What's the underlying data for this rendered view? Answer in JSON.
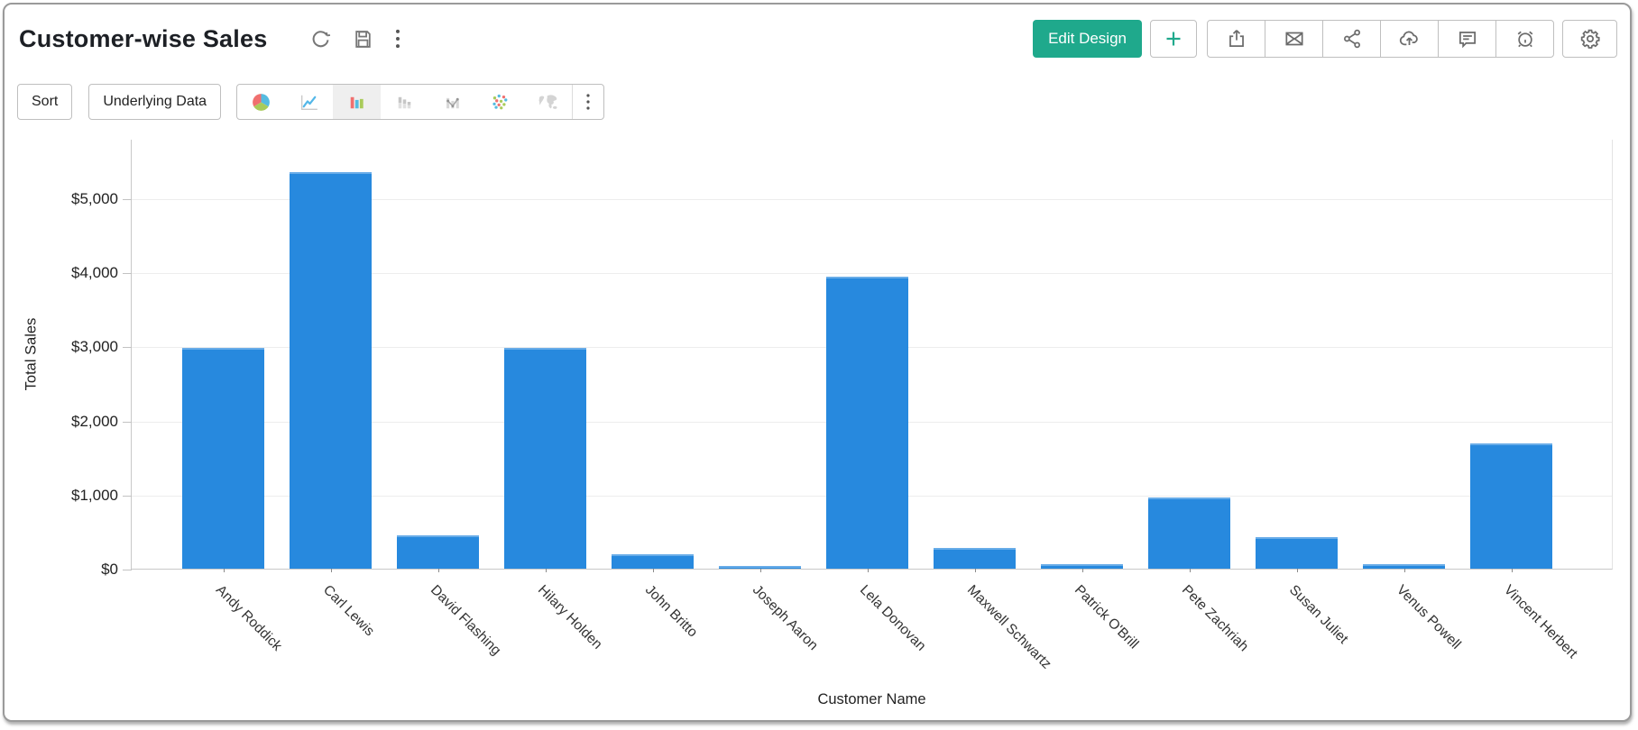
{
  "header": {
    "title": "Customer-wise Sales",
    "edit_design_label": "Edit Design",
    "title_icons": [
      "refresh-icon",
      "save-icon",
      "more-options-icon"
    ],
    "action_icons": [
      "add",
      "export",
      "email",
      "share",
      "cloud-upload",
      "comments",
      "schedule-alert",
      "settings"
    ]
  },
  "toolbar": {
    "sort_label": "Sort",
    "underlying_data_label": "Underlying Data",
    "chart_types": [
      {
        "name": "pie",
        "selected": false
      },
      {
        "name": "line",
        "selected": false
      },
      {
        "name": "bar",
        "selected": true
      },
      {
        "name": "stacked-bar",
        "selected": false
      },
      {
        "name": "combo",
        "selected": false
      },
      {
        "name": "scatter",
        "selected": false
      },
      {
        "name": "map",
        "selected": false
      }
    ]
  },
  "chart_data": {
    "type": "bar",
    "title": "",
    "xlabel": "Customer Name",
    "ylabel": "Total Sales",
    "categories": [
      "Andy Roddick",
      "Carl Lewis",
      "David Flashing",
      "Hilary Holden",
      "John Britto",
      "Joseph Aaron",
      "Lela Donovan",
      "Maxwell Schwartz",
      "Patrick O'Brill",
      "Pete Zachriah",
      "Susan Juliet",
      "Venus Powell",
      "Vincent Herbert"
    ],
    "values": [
      2975,
      5350,
      455,
      2975,
      200,
      40,
      3940,
      280,
      60,
      965,
      430,
      55,
      1695
    ],
    "y_tick_labels": [
      "$0",
      "$1,000",
      "$2,000",
      "$3,000",
      "$4,000",
      "$5,000"
    ],
    "y_tick_values": [
      0,
      1000,
      2000,
      3000,
      4000,
      5000
    ],
    "ylim": [
      0,
      5800
    ],
    "grid": true,
    "legend": false,
    "bar_color": "#2789DE",
    "value_format": "$#,###"
  },
  "colors": {
    "accent_green": "#1FA98C",
    "bar_blue": "#2789DE",
    "icon_gray": "#6b6b6b",
    "border_gray": "#bfbfbf"
  }
}
